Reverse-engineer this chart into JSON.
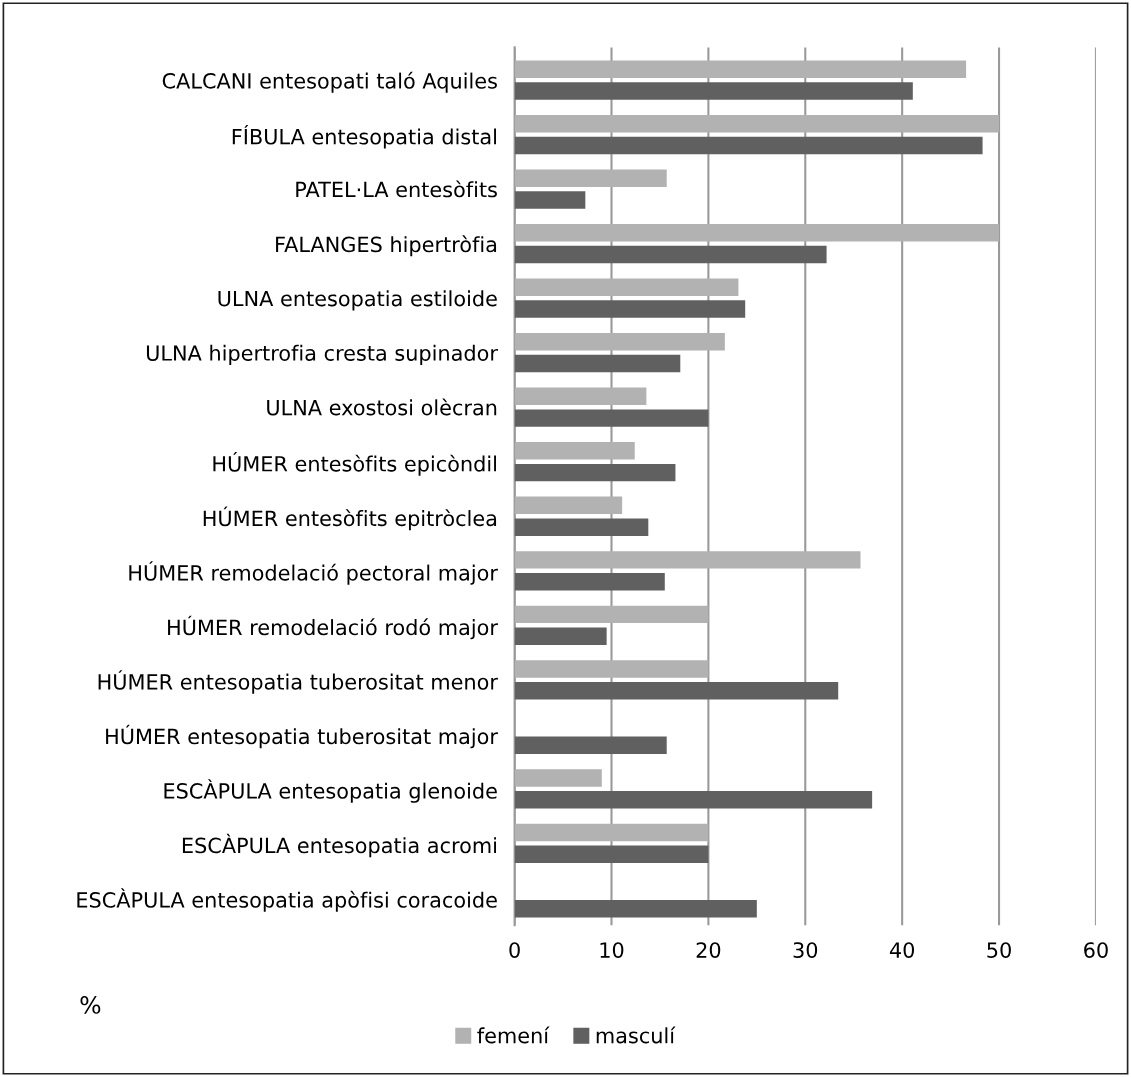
{
  "chart_data": {
    "type": "bar",
    "orientation": "horizontal",
    "xlabel": "%",
    "categories": [
      "CALCANI entesopati taló Aquiles",
      "FÍBULA entesopatia distal",
      "PATEL·LA entesòfits",
      "FALANGES hipertròfia",
      "ULNA entesopatia estiloide",
      "ULNA hipertrofia cresta supinador",
      "ULNA exostosi olècran",
      "HÚMER entesòfits epicòndil",
      "HÚMER entesòfits epitròclea",
      "HÚMER remodelació pectoral major",
      "HÚMER remodelació rodó major",
      "HÚMER entesopatia tuberositat menor",
      "HÚMER entesopatia tuberositat major",
      "ESCÀPULA entesopatia glenoide",
      "ESCÀPULA entesopatia acromi",
      "ESCÀPULA entesopatia apòfisi coracoide"
    ],
    "series": [
      {
        "name": "femení",
        "color": "#b2b2b2",
        "values": [
          46.6,
          50,
          15.7,
          50,
          23.1,
          21.7,
          13.6,
          12.4,
          11.1,
          35.7,
          20,
          20,
          null,
          9.0,
          20,
          null
        ]
      },
      {
        "name": "masculí",
        "color": "#606060",
        "values": [
          41.1,
          48.3,
          7.3,
          32.2,
          23.8,
          17.1,
          20,
          16.6,
          13.8,
          15.5,
          9.5,
          33.4,
          15.7,
          36.9,
          20,
          25.0
        ]
      }
    ],
    "xlim": [
      0,
      60
    ],
    "xticks": [
      0,
      10,
      20,
      30,
      40,
      50,
      60
    ],
    "grid": "x",
    "legend": "bottom"
  }
}
